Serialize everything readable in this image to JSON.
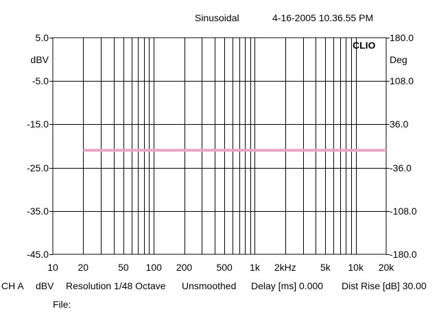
{
  "header": {
    "mode": "Sinusoidal",
    "timestamp": "4-16-2005 10.36.55 PM"
  },
  "footer": {
    "channel": "CH A",
    "unit": "dBV",
    "resolution": "Resolution 1/48 Octave",
    "smoothing": "Unsmoothed",
    "delay": "Delay [ms] 0.000",
    "dist_rise": "Dist Rise [dB] 30.00",
    "file_label": "File:"
  },
  "chart_data": {
    "type": "line",
    "brand": "CLIO",
    "left_axis": {
      "label": "dBV",
      "range": [
        -45.0,
        5.0
      ],
      "ticks": [
        5.0,
        -5.0,
        -15.0,
        -25.0,
        -35.0,
        -45.0
      ],
      "tick_labels": [
        "5.0",
        "-5.0",
        "-15.0",
        "-25.0",
        "-35.0",
        "-45.0"
      ]
    },
    "right_axis": {
      "label": "Deg",
      "range": [
        -180.0,
        180.0
      ],
      "tick_labels": [
        "180.0",
        "108.0",
        "36.0",
        "-36.0",
        "-108.0",
        "-180.0"
      ]
    },
    "x_axis": {
      "scale": "log",
      "range": [
        10,
        20000
      ],
      "ticks": [
        10,
        20,
        50,
        100,
        200,
        500,
        1000,
        2000,
        5000,
        10000,
        20000
      ],
      "tick_labels": [
        "10",
        "20",
        "50",
        "100",
        "200",
        "500",
        "1k",
        "2kHz",
        "5k",
        "10k",
        "20k"
      ]
    },
    "grid": true,
    "series": [
      {
        "color": "#f0a0c8",
        "x": [
          20,
          20000
        ],
        "values": [
          -21.0,
          -21.0
        ]
      }
    ]
  }
}
